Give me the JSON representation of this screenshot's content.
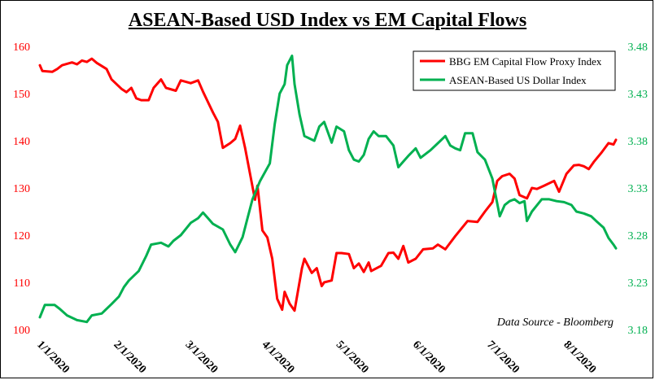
{
  "chart_data": {
    "type": "line",
    "title": "ASEAN-Based USD Index vs EM Capital Flows",
    "annotation": "Data Source - Bloomberg",
    "legend_position": "top-right",
    "grid": false,
    "x_tick_labels": [
      "1/1/2020",
      "2/1/2020",
      "3/1/2020",
      "4/1/2020",
      "5/1/2020",
      "6/1/2020",
      "7/1/2020",
      "8/1/2020"
    ],
    "xlim": [
      "2020-01-01",
      "2020-08-21"
    ],
    "left_axis": {
      "ylim": [
        100,
        160
      ],
      "ticks": [
        "100",
        "110",
        "120",
        "130",
        "140",
        "150",
        "160"
      ],
      "color": "#ff0000"
    },
    "right_axis": {
      "ylim": [
        3.18,
        3.48
      ],
      "ticks": [
        "3.18",
        "3.23",
        "3.28",
        "3.33",
        "3.38",
        "3.43",
        "3.48"
      ],
      "color": "#00b050"
    },
    "series": [
      {
        "name": "BBG EM Capital Flow Proxy Index",
        "axis": "left",
        "color": "#ff0000",
        "points": [
          [
            "2020-01-01",
            156.0
          ],
          [
            "2020-01-02",
            154.8
          ],
          [
            "2020-01-06",
            154.6
          ],
          [
            "2020-01-08",
            155.2
          ],
          [
            "2020-01-10",
            156.0
          ],
          [
            "2020-01-14",
            156.6
          ],
          [
            "2020-01-16",
            156.2
          ],
          [
            "2020-01-18",
            157.0
          ],
          [
            "2020-01-20",
            156.7
          ],
          [
            "2020-01-22",
            157.4
          ],
          [
            "2020-01-24",
            156.5
          ],
          [
            "2020-01-28",
            155.2
          ],
          [
            "2020-01-30",
            153.0
          ],
          [
            "2020-02-03",
            151.0
          ],
          [
            "2020-02-05",
            150.3
          ],
          [
            "2020-02-07",
            151.2
          ],
          [
            "2020-02-09",
            149.0
          ],
          [
            "2020-02-11",
            148.6
          ],
          [
            "2020-02-14",
            148.6
          ],
          [
            "2020-02-16",
            151.2
          ],
          [
            "2020-02-19",
            153.0
          ],
          [
            "2020-02-21",
            151.2
          ],
          [
            "2020-02-25",
            150.6
          ],
          [
            "2020-02-27",
            152.8
          ],
          [
            "2020-03-02",
            152.2
          ],
          [
            "2020-03-05",
            152.8
          ],
          [
            "2020-03-07",
            150.4
          ],
          [
            "2020-03-11",
            146.0
          ],
          [
            "2020-03-13",
            144.0
          ],
          [
            "2020-03-15",
            138.5
          ],
          [
            "2020-03-18",
            139.5
          ],
          [
            "2020-03-20",
            140.4
          ],
          [
            "2020-03-22",
            143.2
          ],
          [
            "2020-03-24",
            138.5
          ],
          [
            "2020-03-26",
            133.0
          ],
          [
            "2020-03-28",
            127.5
          ],
          [
            "2020-03-29",
            130.5
          ],
          [
            "2020-03-31",
            121.0
          ],
          [
            "2020-04-02",
            119.5
          ],
          [
            "2020-04-04",
            115.0
          ],
          [
            "2020-04-06",
            106.5
          ],
          [
            "2020-04-08",
            104.2
          ],
          [
            "2020-04-09",
            108.0
          ],
          [
            "2020-04-11",
            105.5
          ],
          [
            "2020-04-13",
            104.0
          ],
          [
            "2020-04-16",
            113.0
          ],
          [
            "2020-04-17",
            115.0
          ],
          [
            "2020-04-20",
            112.0
          ],
          [
            "2020-04-22",
            113.0
          ],
          [
            "2020-04-24",
            109.2
          ],
          [
            "2020-04-25",
            110.0
          ],
          [
            "2020-04-28",
            110.4
          ],
          [
            "2020-04-30",
            116.2
          ],
          [
            "2020-05-02",
            116.2
          ],
          [
            "2020-05-05",
            116.0
          ],
          [
            "2020-05-07",
            113.0
          ],
          [
            "2020-05-09",
            114.0
          ],
          [
            "2020-05-11",
            112.2
          ],
          [
            "2020-05-13",
            114.2
          ],
          [
            "2020-05-14",
            112.4
          ],
          [
            "2020-05-18",
            113.5
          ],
          [
            "2020-05-21",
            116.2
          ],
          [
            "2020-05-23",
            116.3
          ],
          [
            "2020-05-25",
            115.0
          ],
          [
            "2020-05-27",
            117.7
          ],
          [
            "2020-05-29",
            114.2
          ],
          [
            "2020-06-01",
            115.0
          ],
          [
            "2020-06-04",
            117.0
          ],
          [
            "2020-06-08",
            117.2
          ],
          [
            "2020-06-10",
            118.0
          ],
          [
            "2020-06-13",
            117.0
          ],
          [
            "2020-06-17",
            119.8
          ],
          [
            "2020-06-22",
            123.0
          ],
          [
            "2020-06-26",
            122.8
          ],
          [
            "2020-06-29",
            125.0
          ],
          [
            "2020-07-02",
            127.0
          ],
          [
            "2020-07-04",
            131.5
          ],
          [
            "2020-07-06",
            132.5
          ],
          [
            "2020-07-09",
            133.0
          ],
          [
            "2020-07-11",
            132.0
          ],
          [
            "2020-07-13",
            128.5
          ],
          [
            "2020-07-16",
            127.8
          ],
          [
            "2020-07-18",
            130.0
          ],
          [
            "2020-07-20",
            129.8
          ],
          [
            "2020-07-23",
            130.5
          ],
          [
            "2020-07-27",
            131.5
          ],
          [
            "2020-07-29",
            129.2
          ],
          [
            "2020-08-01",
            133.0
          ],
          [
            "2020-08-04",
            134.8
          ],
          [
            "2020-08-06",
            134.9
          ],
          [
            "2020-08-08",
            134.6
          ],
          [
            "2020-08-10",
            134.0
          ],
          [
            "2020-08-12",
            135.5
          ],
          [
            "2020-08-15",
            137.4
          ],
          [
            "2020-08-18",
            139.5
          ],
          [
            "2020-08-20",
            139.2
          ],
          [
            "2020-08-21",
            140.2
          ]
        ]
      },
      {
        "name": "ASEAN-Based US Dollar Index",
        "axis": "right",
        "color": "#00b050",
        "points": [
          [
            "2020-01-01",
            3.193
          ],
          [
            "2020-01-03",
            3.206
          ],
          [
            "2020-01-07",
            3.206
          ],
          [
            "2020-01-09",
            3.202
          ],
          [
            "2020-01-12",
            3.195
          ],
          [
            "2020-01-16",
            3.19
          ],
          [
            "2020-01-20",
            3.188
          ],
          [
            "2020-01-22",
            3.195
          ],
          [
            "2020-01-26",
            3.197
          ],
          [
            "2020-01-30",
            3.207
          ],
          [
            "2020-02-02",
            3.215
          ],
          [
            "2020-02-04",
            3.225
          ],
          [
            "2020-02-06",
            3.232
          ],
          [
            "2020-02-10",
            3.242
          ],
          [
            "2020-02-13",
            3.258
          ],
          [
            "2020-02-15",
            3.27
          ],
          [
            "2020-02-19",
            3.272
          ],
          [
            "2020-02-22",
            3.268
          ],
          [
            "2020-02-24",
            3.274
          ],
          [
            "2020-02-27",
            3.28
          ],
          [
            "2020-03-02",
            3.293
          ],
          [
            "2020-03-05",
            3.298
          ],
          [
            "2020-03-07",
            3.304
          ],
          [
            "2020-03-09",
            3.298
          ],
          [
            "2020-03-11",
            3.292
          ],
          [
            "2020-03-15",
            3.286
          ],
          [
            "2020-03-18",
            3.27
          ],
          [
            "2020-03-20",
            3.262
          ],
          [
            "2020-03-23",
            3.278
          ],
          [
            "2020-03-25",
            3.298
          ],
          [
            "2020-03-27",
            3.318
          ],
          [
            "2020-03-30",
            3.337
          ],
          [
            "2020-04-03",
            3.356
          ],
          [
            "2020-04-05",
            3.398
          ],
          [
            "2020-04-07",
            3.43
          ],
          [
            "2020-04-09",
            3.44
          ],
          [
            "2020-04-10",
            3.46
          ],
          [
            "2020-04-12",
            3.47
          ],
          [
            "2020-04-13",
            3.44
          ],
          [
            "2020-04-15",
            3.408
          ],
          [
            "2020-04-17",
            3.385
          ],
          [
            "2020-04-21",
            3.38
          ],
          [
            "2020-04-23",
            3.395
          ],
          [
            "2020-04-25",
            3.4
          ],
          [
            "2020-04-28",
            3.378
          ],
          [
            "2020-04-30",
            3.395
          ],
          [
            "2020-05-03",
            3.39
          ],
          [
            "2020-05-05",
            3.37
          ],
          [
            "2020-05-07",
            3.36
          ],
          [
            "2020-05-09",
            3.358
          ],
          [
            "2020-05-11",
            3.365
          ],
          [
            "2020-05-13",
            3.382
          ],
          [
            "2020-05-15",
            3.39
          ],
          [
            "2020-05-17",
            3.385
          ],
          [
            "2020-05-20",
            3.385
          ],
          [
            "2020-05-23",
            3.375
          ],
          [
            "2020-05-25",
            3.352
          ],
          [
            "2020-05-27",
            3.358
          ],
          [
            "2020-05-29",
            3.364
          ],
          [
            "2020-06-01",
            3.372
          ],
          [
            "2020-06-03",
            3.362
          ],
          [
            "2020-06-07",
            3.37
          ],
          [
            "2020-06-11",
            3.38
          ],
          [
            "2020-06-13",
            3.385
          ],
          [
            "2020-06-15",
            3.375
          ],
          [
            "2020-06-17",
            3.372
          ],
          [
            "2020-06-19",
            3.37
          ],
          [
            "2020-06-21",
            3.388
          ],
          [
            "2020-06-24",
            3.388
          ],
          [
            "2020-06-26",
            3.368
          ],
          [
            "2020-06-29",
            3.36
          ],
          [
            "2020-07-02",
            3.34
          ],
          [
            "2020-07-05",
            3.3
          ],
          [
            "2020-07-07",
            3.312
          ],
          [
            "2020-07-09",
            3.316
          ],
          [
            "2020-07-11",
            3.318
          ],
          [
            "2020-07-13",
            3.314
          ],
          [
            "2020-07-15",
            3.316
          ],
          [
            "2020-07-16",
            3.295
          ],
          [
            "2020-07-18",
            3.305
          ],
          [
            "2020-07-22",
            3.318
          ],
          [
            "2020-07-25",
            3.318
          ],
          [
            "2020-07-28",
            3.316
          ],
          [
            "2020-07-31",
            3.315
          ],
          [
            "2020-08-03",
            3.312
          ],
          [
            "2020-08-05",
            3.305
          ],
          [
            "2020-08-08",
            3.303
          ],
          [
            "2020-08-11",
            3.3
          ],
          [
            "2020-08-13",
            3.295
          ],
          [
            "2020-08-16",
            3.288
          ],
          [
            "2020-08-18",
            3.277
          ],
          [
            "2020-08-20",
            3.27
          ],
          [
            "2020-08-21",
            3.266
          ]
        ]
      }
    ]
  }
}
